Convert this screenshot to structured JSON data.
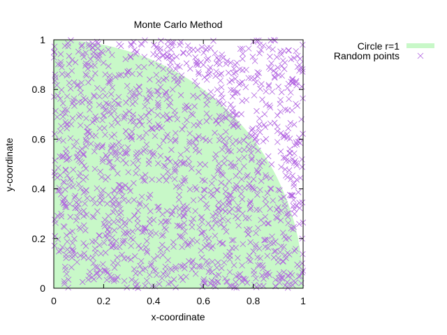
{
  "chart_data": {
    "type": "scatter",
    "title": "Monte Carlo Method",
    "xlabel": "x-coordinate",
    "ylabel": "y-coordinate",
    "xlim": [
      0,
      1
    ],
    "ylim": [
      0,
      1
    ],
    "grid": false,
    "legend_position": "outside-top-right",
    "xticks": [
      "0",
      "0.2",
      "0.4",
      "0.6",
      "0.8",
      "1"
    ],
    "yticks": [
      "0",
      "0.2",
      "0.4",
      "0.6",
      "0.8",
      "1"
    ],
    "series": [
      {
        "name": "Circle r=1",
        "kind": "filled-area",
        "shape": "quarter circle x^2 + y^2 <= 1",
        "radius": 1,
        "color": "#c8f8c8"
      },
      {
        "name": "Random points",
        "kind": "scatter",
        "marker": "x",
        "color": "#b060e0",
        "count": 1500,
        "distribution": "uniform on [0,1] x [0,1]"
      }
    ]
  }
}
